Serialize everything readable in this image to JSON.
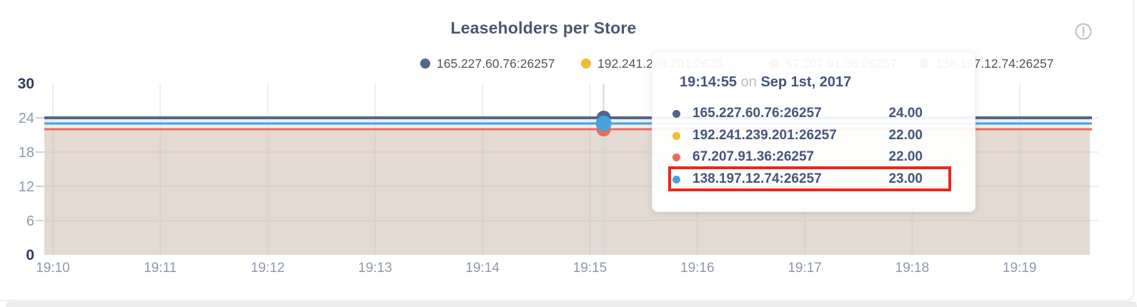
{
  "panel": {
    "title": "Leaseholders per Store"
  },
  "legend": {
    "items": [
      {
        "label": "165.227.60.76:26257",
        "color": "#53658a"
      },
      {
        "label": "192.241.239.201:2625…",
        "color": "#eebd33"
      },
      {
        "label": "67.207.91.36:26257",
        "color": "#ee6a60"
      },
      {
        "label": "138.197.12.74:26257",
        "color": "#49a2db"
      }
    ]
  },
  "tooltip": {
    "time": "19:14:55",
    "connector": "on",
    "date": "Sep 1st, 2017",
    "rows": [
      {
        "name": "165.227.60.76:26257",
        "value": "24.00",
        "color": "#53658a",
        "highlighted": false
      },
      {
        "name": "192.241.239.201:26257",
        "value": "22.00",
        "color": "#eebd33",
        "highlighted": false
      },
      {
        "name": "67.207.91.36:26257",
        "value": "22.00",
        "color": "#ee6a60",
        "highlighted": false
      },
      {
        "name": "138.197.12.74:26257",
        "value": "23.00",
        "color": "#49a2db",
        "highlighted": true
      }
    ]
  },
  "chart_data": {
    "type": "area",
    "title": "Leaseholders per Store",
    "x": [
      "19:10",
      "19:11",
      "19:12",
      "19:13",
      "19:14",
      "19:15",
      "19:16",
      "19:17",
      "19:18",
      "19:19"
    ],
    "series": [
      {
        "name": "165.227.60.76:26257",
        "color": "#53658a",
        "values": [
          24,
          24,
          24,
          24,
          24,
          24,
          24,
          24,
          24,
          24
        ]
      },
      {
        "name": "192.241.239.201:26257",
        "color": "#eebd33",
        "values": [
          22,
          22,
          22,
          22,
          22,
          22,
          22,
          22,
          22,
          22
        ]
      },
      {
        "name": "67.207.91.36:26257",
        "color": "#ee6a60",
        "values": [
          22,
          22,
          22,
          22,
          22,
          22,
          22,
          22,
          22,
          22
        ]
      },
      {
        "name": "138.197.12.74:26257",
        "color": "#49a2db",
        "values": [
          23,
          23,
          23,
          23,
          23,
          23,
          23,
          23,
          23,
          23
        ]
      }
    ],
    "ylim": [
      0,
      30
    ],
    "y_ticks": [
      30,
      24,
      18,
      12,
      6,
      0
    ],
    "y_tick_emphasis": [
      30,
      0
    ],
    "grid": true,
    "legend_position": "top",
    "crosshair": {
      "time": "19:14:55",
      "date": "Sep 1st, 2017",
      "x_fraction": 0.535
    },
    "colors": {
      "axis_label": "#8d98ac",
      "axis_label_emphasis": "#2e3e5c",
      "gridline": "#ededed",
      "crosshair": "#d6d6d6",
      "fill_below_all": "rgba(200,182,165,0.5)",
      "fill_band_23_24": "rgba(213,224,236,0.55)",
      "fill_band_22_23": "rgba(233,231,226,0.7)"
    }
  }
}
